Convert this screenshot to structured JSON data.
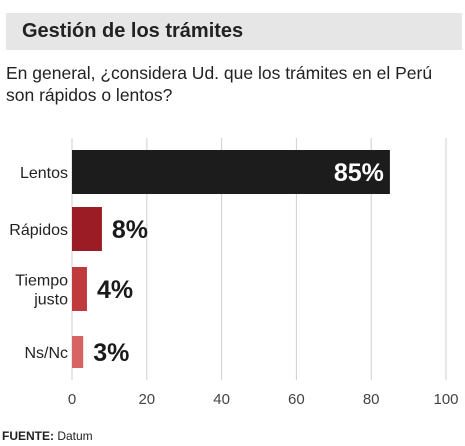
{
  "header": {
    "title": "Gestión de los trámites"
  },
  "question": "En general, ¿considera Ud. que los trámites en el Perú son rápidos o lentos?",
  "source": {
    "label": "FUENTE:",
    "text": " Datum"
  },
  "chart_data": {
    "type": "bar",
    "orientation": "horizontal",
    "categories": [
      "Lentos",
      "Rápidos",
      "Tiempo justo",
      "Ns/Nc"
    ],
    "category_lines": [
      [
        "Lentos"
      ],
      [
        "Rápidos"
      ],
      [
        "Tiempo",
        "justo"
      ],
      [
        "Ns/Nc"
      ]
    ],
    "values": [
      85,
      8,
      4,
      3
    ],
    "value_labels": [
      "85%",
      "8%",
      "4%",
      "3%"
    ],
    "colors": [
      "#1c1c1c",
      "#9b1c24",
      "#c0393d",
      "#d76463"
    ],
    "xlim": [
      0,
      100
    ],
    "xticks": [
      0,
      20,
      40,
      60,
      80,
      100
    ],
    "grid": true,
    "gridline_color": "#cfcfcf",
    "title": "",
    "xlabel": "",
    "ylabel": ""
  }
}
